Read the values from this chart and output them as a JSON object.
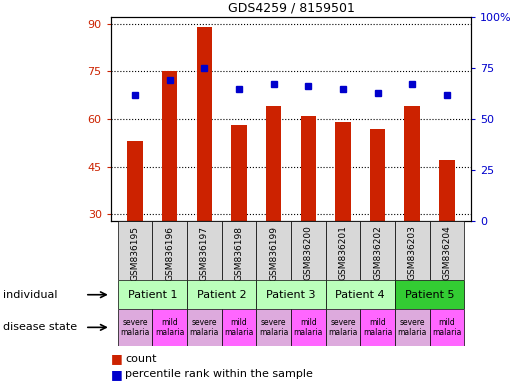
{
  "title": "GDS4259 / 8159501",
  "samples": [
    "GSM836195",
    "GSM836196",
    "GSM836197",
    "GSM836198",
    "GSM836199",
    "GSM836200",
    "GSM836201",
    "GSM836202",
    "GSM836203",
    "GSM836204"
  ],
  "bar_values": [
    53,
    75,
    89,
    58,
    64,
    61,
    59,
    57,
    64,
    47
  ],
  "percentile_values": [
    62,
    69,
    75,
    65,
    67,
    66,
    65,
    63,
    67,
    62
  ],
  "ylim_left": [
    28,
    92
  ],
  "ylim_right": [
    0,
    100
  ],
  "yticks_left": [
    30,
    45,
    60,
    75,
    90
  ],
  "yticks_right": [
    0,
    25,
    50,
    75,
    100
  ],
  "bar_color": "#cc2200",
  "square_color": "#0000cc",
  "patients": [
    {
      "label": "Patient 1",
      "cols": [
        0,
        1
      ],
      "color": "#bbffbb"
    },
    {
      "label": "Patient 2",
      "cols": [
        2,
        3
      ],
      "color": "#bbffbb"
    },
    {
      "label": "Patient 3",
      "cols": [
        4,
        5
      ],
      "color": "#bbffbb"
    },
    {
      "label": "Patient 4",
      "cols": [
        6,
        7
      ],
      "color": "#bbffbb"
    },
    {
      "label": "Patient 5",
      "cols": [
        8,
        9
      ],
      "color": "#33cc33"
    }
  ],
  "disease_labels": [
    "severe\nmalaria",
    "mild\nmalaria",
    "severe\nmalaria",
    "mild\nmalaria",
    "severe\nmalaria",
    "mild\nmalaria",
    "severe\nmalaria",
    "mild\nmalaria",
    "severe\nmalaria",
    "mild\nmalaria"
  ],
  "disease_colors_severe": "#ddaadd",
  "disease_colors_mild": "#ff66ff",
  "tick_color_left": "#cc2200",
  "tick_color_right": "#0000cc",
  "legend_count_label": "count",
  "legend_percentile_label": "percentile rank within the sample",
  "sample_box_color": "#d8d8d8",
  "bar_width": 0.45
}
